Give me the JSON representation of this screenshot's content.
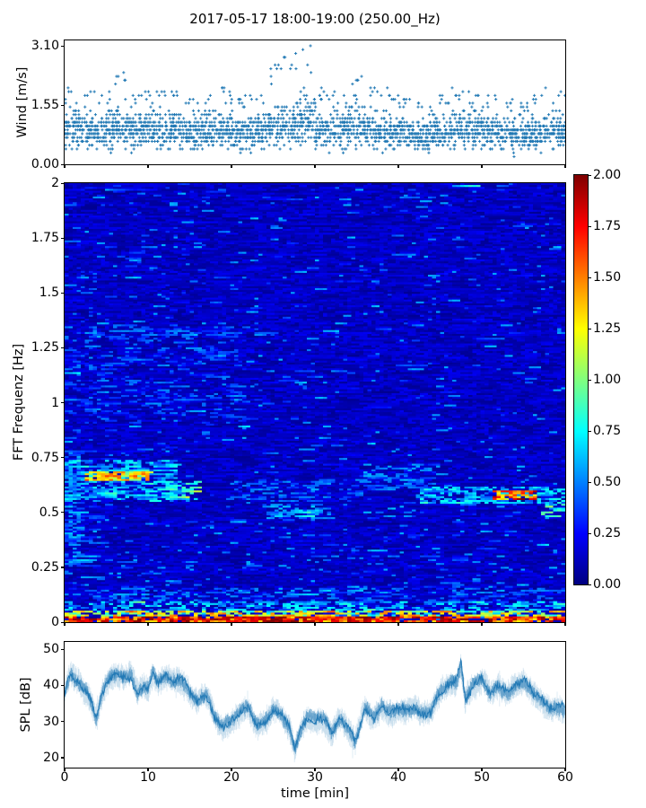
{
  "figure": {
    "title": "2017-05-17 18:00-19:00 (250.00_Hz)",
    "background": "#ffffff",
    "text_color": "#000000",
    "accent_color": "#1f77b4"
  },
  "wind_plot": {
    "ylabel": "Wind [m/s]",
    "yticks": [
      {
        "label": "3.10",
        "value": 3.1
      },
      {
        "label": "1.55",
        "value": 1.55
      },
      {
        "label": "0.00",
        "value": 0.0
      }
    ],
    "xticks_minor": [
      0,
      10,
      20,
      30,
      40,
      50,
      60
    ]
  },
  "spectrogram_plot": {
    "ylabel": "FFT Frequenz [Hz]",
    "yticks": [
      {
        "label": "2",
        "value": 2
      },
      {
        "label": "1.75",
        "value": 1.75
      },
      {
        "label": "1.5",
        "value": 1.5
      },
      {
        "label": "1.25",
        "value": 1.25
      },
      {
        "label": "1",
        "value": 1
      },
      {
        "label": "0.75",
        "value": 0.75
      },
      {
        "label": "0.5",
        "value": 0.5
      },
      {
        "label": "0.25",
        "value": 0.25
      },
      {
        "label": "0",
        "value": 0
      }
    ],
    "xticks_minor": [
      0,
      10,
      20,
      30,
      40,
      50,
      60
    ]
  },
  "colorbar": {
    "colormap": "jet",
    "min": 0.0,
    "max": 2.0,
    "ticks": [
      {
        "label": "2.00",
        "value": 2.0
      },
      {
        "label": "1.75",
        "value": 1.75
      },
      {
        "label": "1.50",
        "value": 1.5
      },
      {
        "label": "1.25",
        "value": 1.25
      },
      {
        "label": "1.00",
        "value": 1.0
      },
      {
        "label": "0.75",
        "value": 0.75
      },
      {
        "label": "0.50",
        "value": 0.5
      },
      {
        "label": "0.25",
        "value": 0.25
      },
      {
        "label": "0.00",
        "value": 0.0
      }
    ]
  },
  "spl_plot": {
    "ylabel": "SPL [dB]",
    "xlabel": "time [min]",
    "yticks": [
      {
        "label": "50",
        "value": 50
      },
      {
        "label": "40",
        "value": 40
      },
      {
        "label": "30",
        "value": 30
      },
      {
        "label": "20",
        "value": 20
      }
    ],
    "xticks": [
      {
        "label": "0",
        "value": 0
      },
      {
        "label": "10",
        "value": 10
      },
      {
        "label": "20",
        "value": 20
      },
      {
        "label": "30",
        "value": 30
      },
      {
        "label": "40",
        "value": 40
      },
      {
        "label": "50",
        "value": 50
      },
      {
        "label": "60",
        "value": 60
      }
    ]
  },
  "chart_data": [
    {
      "type": "scatter",
      "title": "wind speed vs time",
      "ylabel": "Wind [m/s]",
      "marker": "plus",
      "color": "#1f77b4",
      "xlim": [
        0,
        60
      ],
      "ylim": [
        0,
        3.24
      ],
      "x_unit": "min",
      "y_unit": "m/s",
      "quantization_m_s": 0.1,
      "global_max": 3.1,
      "bin_minutes": 2,
      "bin_mean": [
        0.9,
        0.85,
        0.9,
        0.95,
        0.9,
        0.9,
        0.9,
        0.8,
        0.85,
        0.9,
        0.8,
        0.85,
        1.0,
        1.05,
        1.15,
        0.9,
        0.9,
        1.0,
        0.9,
        0.85,
        0.8,
        0.75,
        0.8,
        0.9,
        0.9,
        0.85,
        0.8,
        0.75,
        0.85,
        0.85
      ],
      "bin_max": [
        2.0,
        1.9,
        1.9,
        2.35,
        1.85,
        1.9,
        1.9,
        1.7,
        1.75,
        2.05,
        1.75,
        1.8,
        2.65,
        2.85,
        3.1,
        2.0,
        1.9,
        2.3,
        2.0,
        1.95,
        1.7,
        1.65,
        1.8,
        1.95,
        1.9,
        1.8,
        1.7,
        1.6,
        1.95,
        1.9
      ],
      "points_per_bin": 86
    },
    {
      "type": "heatmap",
      "title": "acoustic FFT spectrogram",
      "ylabel": "FFT Frequenz [Hz]",
      "xlim": [
        0,
        60
      ],
      "ylim": [
        0,
        2
      ],
      "colormap": "jet",
      "clim": [
        0,
        2
      ],
      "grid": false,
      "background": {
        "base_min": 0.04,
        "base_max": 0.22,
        "streak_min": 0.28,
        "streak_max": 0.6,
        "streak_prob_base": 0.05,
        "persistence": 0.45
      },
      "features": [
        {
          "name": "bottom-red-line",
          "t": [
            0,
            60
          ],
          "f": [
            0.0,
            0.022
          ],
          "v": [
            1.3,
            2.0
          ],
          "prob": 0.85
        },
        {
          "name": "bottom-orange-band",
          "t": [
            0,
            60
          ],
          "f": [
            0.022,
            0.05
          ],
          "v": [
            0.6,
            1.5
          ],
          "prob": 0.55
        },
        {
          "name": "low-freq-cyan-band",
          "t": [
            0,
            60
          ],
          "f": [
            0.05,
            0.1
          ],
          "v": [
            0.35,
            0.8
          ],
          "prob": 0.35
        },
        {
          "name": "low-freq-elevated",
          "t": [
            0,
            60
          ],
          "f": [
            0.1,
            0.16
          ],
          "v": [
            0.25,
            0.55
          ],
          "prob": 0.22
        },
        {
          "name": "left-band-core",
          "t": [
            2.5,
            10
          ],
          "f": [
            0.645,
            0.69
          ],
          "v": [
            0.9,
            1.6
          ],
          "prob": 0.8
        },
        {
          "name": "left-band-halo",
          "t": [
            0,
            13.5
          ],
          "f": [
            0.56,
            0.74
          ],
          "v": [
            0.35,
            0.75
          ],
          "prob": 0.45
        },
        {
          "name": "left-band-tail",
          "t": [
            10,
            16
          ],
          "f": [
            0.55,
            0.64
          ],
          "v": [
            0.4,
            0.9
          ],
          "prob": 0.5
        },
        {
          "name": "left-edge-column",
          "t": [
            0,
            2
          ],
          "f": [
            0.25,
            0.78
          ],
          "v": [
            0.3,
            0.65
          ],
          "prob": 0.5
        },
        {
          "name": "mid-patch-0.5Hz",
          "t": [
            24,
            32
          ],
          "f": [
            0.47,
            0.54
          ],
          "v": [
            0.35,
            0.7
          ],
          "prob": 0.45
        },
        {
          "name": "mid-weak-0.6Hz",
          "t": [
            20,
            36
          ],
          "f": [
            0.55,
            0.65
          ],
          "v": [
            0.3,
            0.55
          ],
          "prob": 0.2
        },
        {
          "name": "right-band-0.57Hz",
          "t": [
            42,
            60
          ],
          "f": [
            0.54,
            0.62
          ],
          "v": [
            0.4,
            0.8
          ],
          "prob": 0.5
        },
        {
          "name": "right-hot-spot",
          "t": [
            51.5,
            56.5
          ],
          "f": [
            0.555,
            0.6
          ],
          "v": [
            1.1,
            1.9
          ],
          "prob": 0.75
        },
        {
          "name": "right-end-green",
          "t": [
            57,
            60
          ],
          "f": [
            0.48,
            0.55
          ],
          "v": [
            0.5,
            1.0
          ],
          "prob": 0.45
        },
        {
          "name": "right-mid-elevated",
          "t": [
            36,
            45
          ],
          "f": [
            0.6,
            0.72
          ],
          "v": [
            0.3,
            0.6
          ],
          "prob": 0.25
        },
        {
          "name": "left-upper-texture",
          "t": [
            0,
            22
          ],
          "f": [
            0.9,
            1.35
          ],
          "v": [
            0.28,
            0.5
          ],
          "prob": 0.15
        }
      ]
    },
    {
      "type": "line",
      "title": "sound pressure level vs time",
      "xlabel": "time [min]",
      "ylabel": "SPL [dB]",
      "color": "#1f77b4",
      "xlim": [
        0,
        60
      ],
      "ylim": [
        17.2,
        52
      ],
      "noise_db": 3.0,
      "keypoints": {
        "t": [
          0,
          0.7,
          1.2,
          2,
          3,
          3.8,
          4.5,
          5,
          6,
          7,
          8,
          8.7,
          9.5,
          10,
          10.6,
          11.2,
          12,
          13,
          13.7,
          14.5,
          15,
          16,
          17,
          18,
          19,
          20,
          21,
          22,
          23,
          24,
          25,
          26,
          27,
          27.6,
          28.2,
          29,
          30,
          31,
          32,
          33,
          34,
          34.8,
          35.5,
          36,
          37,
          38,
          39,
          40,
          41,
          42,
          43,
          44,
          45,
          46,
          47,
          47.5,
          48,
          49,
          50,
          51,
          52,
          53,
          54,
          55,
          56,
          57,
          58,
          59,
          60
        ],
        "db": [
          38,
          44,
          42,
          40,
          37,
          31,
          38,
          41,
          43,
          42,
          43,
          38,
          40,
          39,
          44,
          41,
          43,
          41,
          42,
          40,
          38,
          35,
          37,
          31,
          28,
          30,
          32,
          34,
          29,
          30,
          33,
          32,
          28,
          22,
          27,
          31,
          30,
          31,
          27,
          31,
          28,
          24,
          30,
          34,
          31,
          34,
          32,
          33,
          33,
          34,
          32,
          33,
          38,
          40,
          41,
          46,
          36,
          40,
          42,
          38,
          40,
          38,
          40,
          41,
          38,
          36,
          34,
          34,
          33
        ]
      }
    }
  ]
}
